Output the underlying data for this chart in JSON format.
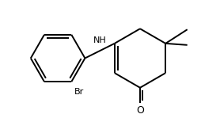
{
  "background_color": "#ffffff",
  "line_color": "#000000",
  "line_width": 1.4,
  "font_size": 9,
  "figsize": [
    2.55,
    1.49
  ],
  "dpi": 100,
  "xlim": [
    0,
    255
  ],
  "ylim": [
    0,
    149
  ]
}
